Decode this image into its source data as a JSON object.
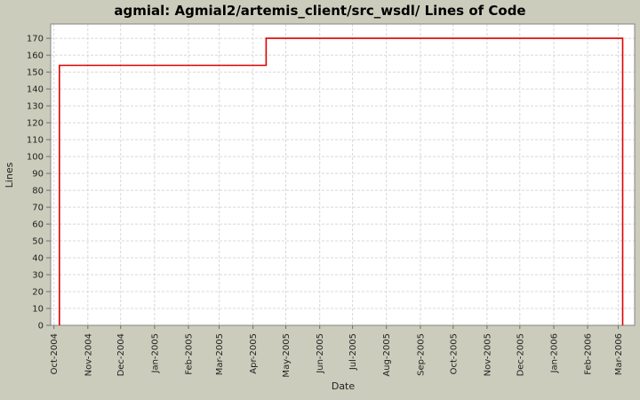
{
  "chart_data": {
    "type": "line",
    "subtype": "step",
    "title": "agmial: Agmial2/artemis_client/src_wsdl/ Lines of Code",
    "xlabel": "Date",
    "ylabel": "Lines",
    "grid": true,
    "legend_position": "none",
    "ylim": [
      0,
      178.5
    ],
    "y_ticks": [
      0,
      10,
      20,
      30,
      40,
      50,
      60,
      70,
      80,
      90,
      100,
      110,
      120,
      130,
      140,
      150,
      160,
      170
    ],
    "x_domain": [
      "2004-09-28",
      "2006-03-16"
    ],
    "x_ticks": [
      {
        "label": "Oct-2004",
        "date": "2004-10-01"
      },
      {
        "label": "Nov-2004",
        "date": "2004-11-01"
      },
      {
        "label": "Dec-2004",
        "date": "2004-12-01"
      },
      {
        "label": "Jan-2005",
        "date": "2005-01-01"
      },
      {
        "label": "Feb-2005",
        "date": "2005-02-01"
      },
      {
        "label": "Mar-2005",
        "date": "2005-03-01"
      },
      {
        "label": "Apr-2005",
        "date": "2005-04-01"
      },
      {
        "label": "May-2005",
        "date": "2005-05-01"
      },
      {
        "label": "Jun-2005",
        "date": "2005-06-01"
      },
      {
        "label": "Jul-2005",
        "date": "2005-07-01"
      },
      {
        "label": "Aug-2005",
        "date": "2005-08-01"
      },
      {
        "label": "Sep-2005",
        "date": "2005-09-01"
      },
      {
        "label": "Oct-2005",
        "date": "2005-10-01"
      },
      {
        "label": "Nov-2005",
        "date": "2005-11-01"
      },
      {
        "label": "Dec-2005",
        "date": "2005-12-01"
      },
      {
        "label": "Jan-2006",
        "date": "2006-01-01"
      },
      {
        "label": "Feb-2006",
        "date": "2006-02-01"
      },
      {
        "label": "Mar-2006",
        "date": "2006-03-01"
      }
    ],
    "series": [
      {
        "name": "Lines of Code",
        "color": "#dd0000",
        "points": [
          [
            "2004-10-06",
            0
          ],
          [
            "2004-10-06",
            154
          ],
          [
            "2005-04-13",
            154
          ],
          [
            "2005-04-13",
            170
          ],
          [
            "2006-03-05",
            170
          ],
          [
            "2006-03-05",
            0
          ]
        ]
      }
    ],
    "colors": {
      "background": "#ccccbc",
      "plot_background": "#ffffff",
      "gridline": "#d8d8d8",
      "plot_border": "#848484",
      "tick_mark": "#6e6e6e",
      "text": "#222222",
      "line": "#dd0000"
    }
  }
}
